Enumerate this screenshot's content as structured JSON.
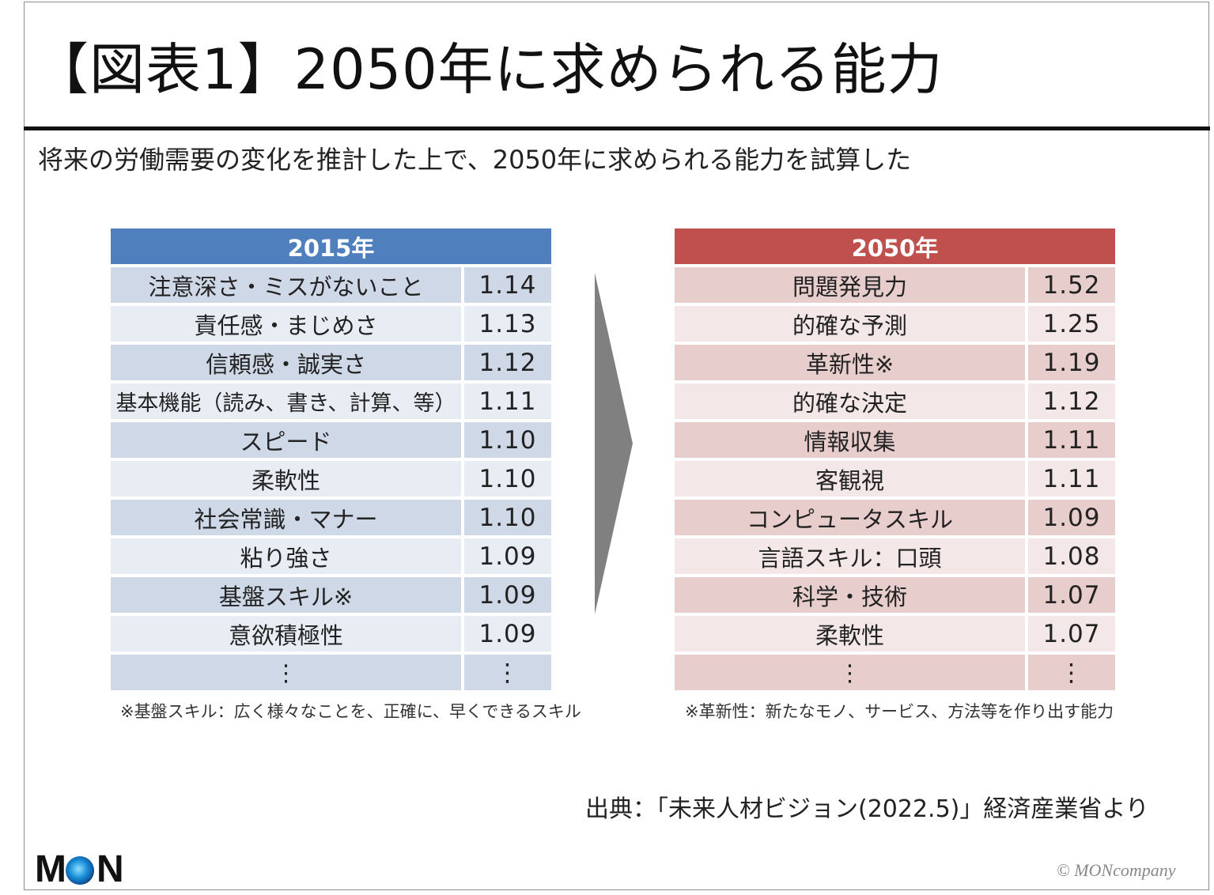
{
  "title": "【図表1】2050年に求められる能力",
  "subtitle": "将来の労働需要の変化を推計した上で、2050年に求められる能力を試算した",
  "table_2015": {
    "header": "2015年",
    "rows": [
      {
        "label": "注意深さ・ミスがないこと",
        "value": "1.14"
      },
      {
        "label": "責任感・まじめさ",
        "value": "1.13"
      },
      {
        "label": "信頼感・誠実さ",
        "value": "1.12"
      },
      {
        "label": "基本機能（読み、書き、計算、等）",
        "value": "1.11"
      },
      {
        "label": "スピード",
        "value": "1.10"
      },
      {
        "label": "柔軟性",
        "value": "1.10"
      },
      {
        "label": "社会常識・マナー",
        "value": "1.10"
      },
      {
        "label": "粘り強さ",
        "value": "1.09"
      },
      {
        "label": "基盤スキル※",
        "value": "1.09"
      },
      {
        "label": "意欲積極性",
        "value": "1.09"
      },
      {
        "label": "⋮",
        "value": "⋮"
      }
    ],
    "note": "※基盤スキル：広く様々なことを、正確に、早くできるスキル"
  },
  "table_2050": {
    "header": "2050年",
    "rows": [
      {
        "label": "問題発見力",
        "value": "1.52"
      },
      {
        "label": "的確な予測",
        "value": "1.25"
      },
      {
        "label": "革新性※",
        "value": "1.19"
      },
      {
        "label": "的確な決定",
        "value": "1.12"
      },
      {
        "label": "情報収集",
        "value": "1.11"
      },
      {
        "label": "客観視",
        "value": "1.11"
      },
      {
        "label": "コンピュータスキル",
        "value": "1.09"
      },
      {
        "label": "言語スキル：口頭",
        "value": "1.08"
      },
      {
        "label": "科学・技術",
        "value": "1.07"
      },
      {
        "label": "柔軟性",
        "value": "1.07"
      },
      {
        "label": "⋮",
        "value": "⋮"
      }
    ],
    "note": "※革新性：新たなモノ、サービス、方法等を作り出す能力"
  },
  "source": "出典：「未来人材ビジョン(2022.5)」経済産業省より",
  "logo": {
    "text": "MON"
  },
  "copyright": "© MONcompany",
  "colors": {
    "header_2015": "#4f80bd",
    "header_2050": "#c0504d",
    "arrow": "#808080"
  }
}
